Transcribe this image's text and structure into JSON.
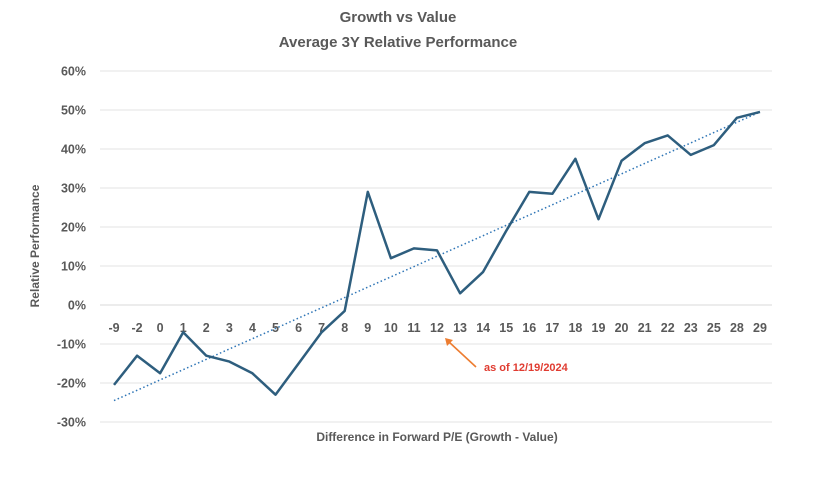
{
  "chart_data": {
    "type": "line",
    "title": "Growth vs Value",
    "subtitle": "Average 3Y Relative Performance",
    "xlabel": "Difference in Forward P/E (Growth - Value)",
    "ylabel": "Relative Performance",
    "categories": [
      "-9",
      "-2",
      "0",
      "1",
      "2",
      "3",
      "4",
      "5",
      "6",
      "7",
      "8",
      "9",
      "10",
      "11",
      "12",
      "13",
      "14",
      "15",
      "16",
      "17",
      "18",
      "19",
      "20",
      "21",
      "22",
      "23",
      "25",
      "28",
      "29"
    ],
    "ylim": [
      -30,
      60
    ],
    "yticks": [
      -30,
      -20,
      -10,
      0,
      10,
      20,
      30,
      40,
      50,
      60
    ],
    "ytick_labels": [
      "-30%",
      "-20%",
      "-10%",
      "0%",
      "10%",
      "20%",
      "30%",
      "40%",
      "50%",
      "60%"
    ],
    "series": [
      {
        "values": [
          -20.5,
          -13,
          -17.5,
          -7,
          -13,
          -14.5,
          -17.5,
          -23,
          -15,
          -7,
          -1.5,
          29,
          12,
          14.5,
          14,
          3,
          8.5,
          19,
          29,
          28.5,
          37.5,
          22,
          37,
          41.5,
          43.5,
          38.5,
          41,
          48,
          49.5
        ],
        "color": "#2e5e7e"
      }
    ],
    "trendline": {
      "style": "dotted",
      "from": -24.5,
      "to": 49.5,
      "color": "#2e75b6"
    },
    "grid": true,
    "legend": "none",
    "annotation": {
      "text": "as of 12/19/2024",
      "color": "#e03c31",
      "arrow_color": "#ed7d31",
      "category": "12"
    }
  }
}
